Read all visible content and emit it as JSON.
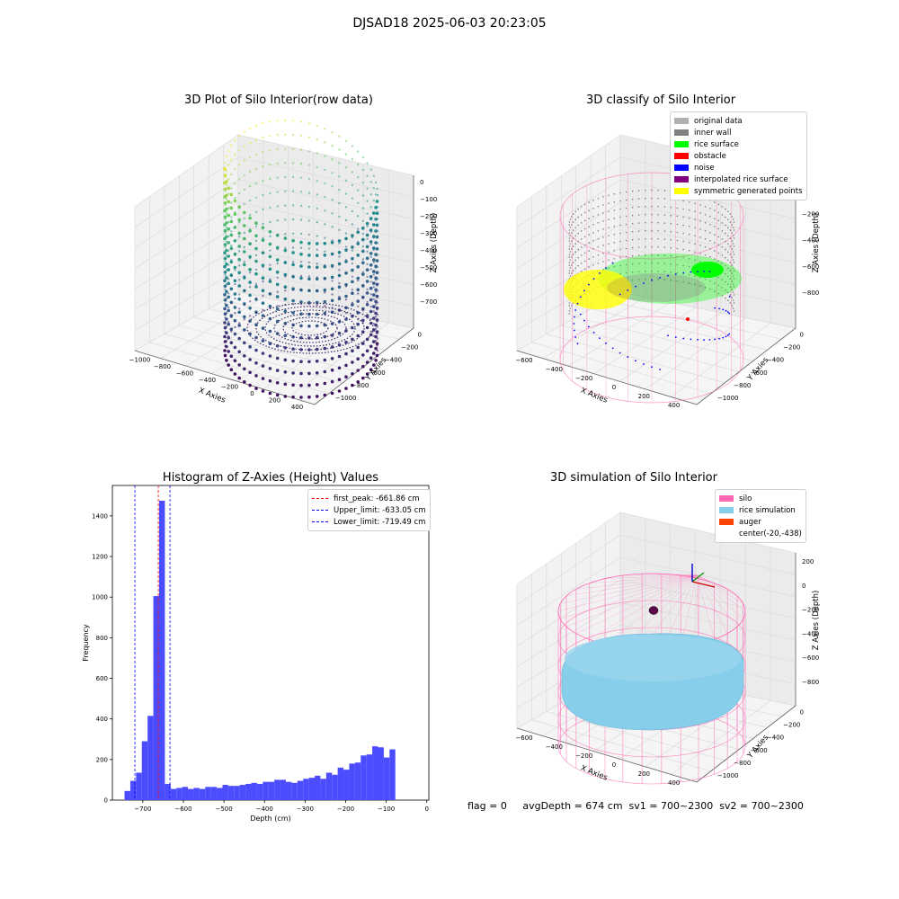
{
  "figure": {
    "suptitle": "DJSAD18 2025-06-03 20:23:05",
    "status_line": "flag = 0     avgDepth = 674 cm  sv1 = 700~2300  sv2 = 700~2300"
  },
  "colors": {
    "histogram_bar": "#4c4cff",
    "silo": "#ff69b4",
    "rice_simulation": "#87ceeb",
    "auger": "#ff4500",
    "rice_surface": "#00ff00",
    "obstacle": "#ff0000",
    "noise": "#0000ff",
    "interpolated": "#800080",
    "symmetric": "#ffff00"
  },
  "chart_data": [
    {
      "type": "scatter3d",
      "title": "3D Plot of Silo Interior(row data)",
      "xlabel": "X Axies",
      "ylabel": "Y Axies",
      "zlabel": "Z Axies (Depth)",
      "x_ticks": [
        "−1000",
        "−800",
        "−600",
        "−400",
        "−200",
        "0",
        "200",
        "400"
      ],
      "y_ticks": [
        "0",
        "−200",
        "−400",
        "−600",
        "−800",
        "−1000"
      ],
      "z_ticks": [
        "0",
        "−100",
        "−200",
        "−300",
        "−400",
        "−500",
        "−600",
        "−700"
      ],
      "colormap": "viridis"
    },
    {
      "type": "scatter3d",
      "title": "3D classify of Silo Interior",
      "xlabel": "X Axies",
      "ylabel": "Y Axies",
      "zlabel": "Z Axies (Depth)",
      "x_ticks": [
        "−600",
        "−400",
        "−200",
        "0",
        "200",
        "400"
      ],
      "y_ticks": [
        "0",
        "−200",
        "−400",
        "−600",
        "−800",
        "−1000"
      ],
      "z_ticks": [
        "0",
        "−200",
        "−400",
        "−600",
        "−800"
      ],
      "legend": [
        {
          "label": "original data",
          "color": "#b0b0b0"
        },
        {
          "label": "inner wall",
          "color": "#808080"
        },
        {
          "label": "rice surface",
          "color": "#00ff00"
        },
        {
          "label": "obstacle",
          "color": "#ff0000"
        },
        {
          "label": "noise",
          "color": "#0000ff"
        },
        {
          "label": "interpolated rice surface",
          "color": "#800080"
        },
        {
          "label": "symmetric generated points",
          "color": "#ffff00"
        }
      ]
    },
    {
      "type": "bar",
      "title": "Histogram of Z-Axies (Height) Values",
      "xlabel": "Depth (cm)",
      "ylabel": "Frequency",
      "xlim": [
        -775,
        5
      ],
      "ylim": [
        0,
        1550
      ],
      "x_ticks": [
        -700,
        -600,
        -500,
        -400,
        -300,
        -200,
        -100,
        0
      ],
      "y_ticks": [
        0,
        200,
        400,
        600,
        800,
        1000,
        1200,
        1400
      ],
      "bin_start": -745,
      "bin_width": 14.2,
      "values": [
        45,
        95,
        135,
        290,
        415,
        1005,
        1475,
        80,
        55,
        60,
        65,
        55,
        60,
        55,
        65,
        65,
        60,
        75,
        70,
        70,
        75,
        80,
        85,
        80,
        90,
        90,
        100,
        100,
        90,
        85,
        95,
        105,
        110,
        120,
        105,
        135,
        125,
        160,
        150,
        180,
        185,
        220,
        225,
        265,
        260,
        210,
        250
      ],
      "vlines": [
        {
          "label": "first_peak: -661.86 cm",
          "x": -661.86,
          "color": "#ff0000"
        },
        {
          "label": "Upper_limit: -633.05 cm",
          "x": -633.05,
          "color": "#0000ff"
        },
        {
          "label": "Lower_limit: -719.49 cm",
          "x": -719.49,
          "color": "#0000ff"
        }
      ],
      "legend_position": "top-right"
    },
    {
      "type": "surface3d",
      "title": "3D simulation of Silo Interior",
      "xlabel": "X Axies",
      "ylabel": "Y Axies",
      "zlabel": "Z Axies (Depth)",
      "x_ticks": [
        "−600",
        "−400",
        "−200",
        "0",
        "200",
        "400"
      ],
      "y_ticks": [
        "0",
        "−200",
        "−400",
        "−600",
        "−800",
        "−1000"
      ],
      "z_ticks": [
        "200",
        "0",
        "−200",
        "−400",
        "−600",
        "−800"
      ],
      "legend": [
        {
          "label": "silo",
          "color": "#ff69b4"
        },
        {
          "label": "rice simulation",
          "color": "#87ceeb"
        },
        {
          "label": "auger",
          "color": "#ff4500"
        },
        {
          "label": "center(-20,-438)",
          "color": ""
        }
      ]
    }
  ]
}
